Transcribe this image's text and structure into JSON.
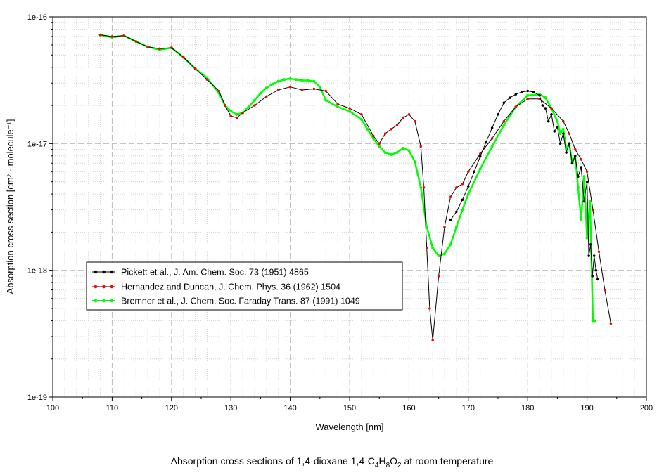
{
  "caption": {
    "prefix": "Absorption cross sections of 1,4-dioxane 1,4-C",
    "sub1": "4",
    "h": "H",
    "sub2": "8",
    "o": "O",
    "sub3": "2",
    "suffix": " at room temperature"
  },
  "chart_data": {
    "type": "line",
    "xlabel": "Wavelength [nm]",
    "ylabel": "Absorption cross section [cm² · molecule⁻¹]",
    "xlim": [
      100,
      200
    ],
    "ylim": [
      1e-19,
      1e-16
    ],
    "yscale": "log",
    "grid": true,
    "legend_position": "lower-left",
    "x_ticks": [
      "100",
      "110",
      "120",
      "130",
      "140",
      "150",
      "160",
      "170",
      "180",
      "190",
      "200"
    ],
    "y_ticks": [
      "1e-19",
      "1e-18",
      "1e-17",
      "1e-16"
    ],
    "series": [
      {
        "name": "Pickett et al., J. Am. Chem. Soc. 73 (1951) 4865",
        "color": "#000000",
        "x": [
          167.0,
          168,
          169,
          170,
          171,
          172,
          173,
          174,
          175,
          176,
          177,
          178,
          179,
          180,
          181,
          182,
          182.5,
          183,
          183.5,
          184,
          184.5,
          185,
          185.5,
          186,
          186.5,
          187,
          187.5,
          188,
          188.5,
          189,
          189.5,
          190,
          190.3,
          190.6,
          190.9,
          191.2,
          191.5,
          191.8
        ],
        "y": [
          2.5e-18,
          2.9e-18,
          3.6e-18,
          4.6e-18,
          6e-18,
          7.9e-18,
          1.03e-17,
          1.33e-17,
          1.7e-17,
          2.1e-17,
          2.3e-17,
          2.45e-17,
          2.55e-17,
          2.6e-17,
          2.55e-17,
          2.4e-17,
          2e-17,
          1.9e-17,
          1.5e-17,
          1.7e-17,
          1.25e-17,
          1.35e-17,
          1e-17,
          1.2e-17,
          8.5e-18,
          1e-17,
          7e-18,
          8e-18,
          5.5e-18,
          6.5e-18,
          3.5e-18,
          5e-18,
          1.3e-18,
          1.6e-18,
          9e-19,
          1.3e-18,
          1e-18,
          8.5e-19
        ]
      },
      {
        "name": "Hernandez and Duncan, J. Chem. Phys. 36 (1962) 1504",
        "color": "#ff0000",
        "x": [
          108,
          110,
          112,
          114,
          116,
          118,
          120,
          122,
          124,
          126,
          128,
          129,
          130,
          131,
          132,
          134,
          136,
          138,
          140,
          142,
          144,
          146,
          148,
          150,
          152,
          154,
          155,
          156,
          157,
          158,
          159,
          160,
          161,
          162,
          162.5,
          163,
          163.5,
          164,
          165,
          166,
          167,
          168,
          169,
          170,
          172,
          174,
          176,
          178,
          180,
          182,
          184,
          186,
          187,
          188,
          189,
          190,
          191,
          192,
          193,
          194
        ],
        "y": [
          7.2e-17,
          7e-17,
          7.1e-17,
          6.4e-17,
          5.8e-17,
          5.6e-17,
          5.7e-17,
          4.8e-17,
          3.9e-17,
          3.2e-17,
          2.6e-17,
          2e-17,
          1.65e-17,
          1.6e-17,
          1.75e-17,
          2e-17,
          2.35e-17,
          2.65e-17,
          2.8e-17,
          2.65e-17,
          2.7e-17,
          2.6e-17,
          2.05e-17,
          1.9e-17,
          1.7e-17,
          1.15e-17,
          1e-17,
          1.2e-17,
          1.3e-17,
          1.4e-17,
          1.6e-17,
          1.7e-17,
          1.5e-17,
          9.5e-18,
          4.5e-18,
          1.5e-18,
          5e-19,
          2.8e-19,
          9e-19,
          2.2e-18,
          3.8e-18,
          4.5e-18,
          4.8e-18,
          6e-18,
          8.3e-18,
          1.1e-17,
          1.5e-17,
          1.95e-17,
          2.25e-17,
          2.25e-17,
          1.9e-17,
          1.5e-17,
          1.2e-17,
          9e-18,
          7.5e-18,
          6e-18,
          3e-18,
          1.4e-18,
          7e-19,
          3.8e-19
        ]
      },
      {
        "name": "Bremner et al., J. Chem. Soc. Faraday Trans. 87 (1991) 1049",
        "color": "#00ff00",
        "x": [
          108,
          110,
          112,
          114,
          116,
          118,
          120,
          122,
          124,
          126,
          128,
          129,
          130,
          131,
          132,
          133,
          134,
          135,
          136,
          137,
          138,
          139,
          140,
          141,
          142,
          143,
          144,
          145,
          146,
          148,
          150,
          152,
          153,
          154,
          155,
          156,
          157,
          158,
          159,
          160,
          161,
          162,
          163,
          164,
          165,
          166,
          167,
          168,
          169,
          170,
          172,
          174,
          176,
          178,
          180,
          182,
          183,
          184,
          185,
          185.5,
          186,
          186.5,
          187,
          187.5,
          188,
          188.5,
          189,
          189.5,
          190,
          190.5,
          191,
          191.3
        ],
        "y": [
          7.2e-17,
          6.9e-17,
          7.1e-17,
          6.4e-17,
          5.8e-17,
          5.5e-17,
          5.7e-17,
          4.8e-17,
          3.9e-17,
          3.3e-17,
          2.5e-17,
          2e-17,
          1.8e-17,
          1.7e-17,
          1.75e-17,
          1.95e-17,
          2.2e-17,
          2.5e-17,
          2.75e-17,
          2.95e-17,
          3.1e-17,
          3.2e-17,
          3.25e-17,
          3.2e-17,
          3.15e-17,
          3.15e-17,
          3.1e-17,
          2.8e-17,
          2.2e-17,
          1.95e-17,
          1.8e-17,
          1.55e-17,
          1.3e-17,
          1.1e-17,
          9.5e-18,
          8.5e-18,
          8.2e-18,
          8.5e-18,
          9.2e-18,
          8.8e-18,
          7.2e-18,
          4.5e-18,
          2.2e-18,
          1.5e-18,
          1.3e-18,
          1.35e-18,
          1.6e-18,
          2.2e-18,
          3e-18,
          4e-18,
          6.3e-18,
          9.5e-18,
          1.4e-17,
          1.95e-17,
          2.4e-17,
          2.45e-17,
          2.3e-17,
          1.9e-17,
          1.5e-17,
          1.2e-17,
          1.3e-17,
          9e-18,
          1e-17,
          7e-18,
          8e-18,
          4.5e-18,
          2.5e-18,
          5.5e-18,
          1.8e-18,
          3.5e-18,
          4e-19,
          4e-19
        ]
      }
    ]
  }
}
